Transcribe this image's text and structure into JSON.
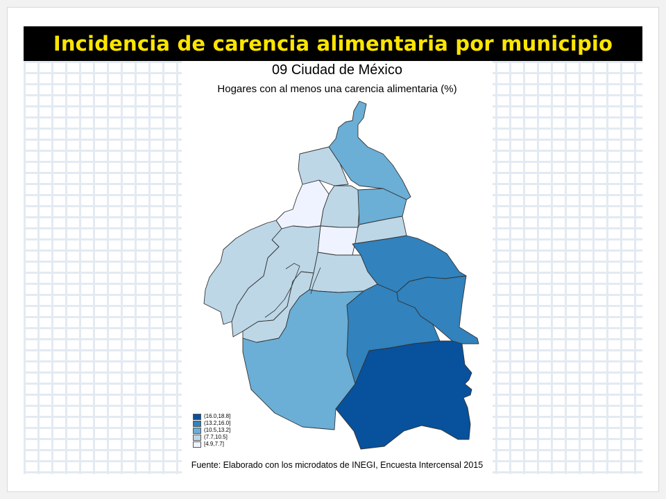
{
  "slide": {
    "title": "Incidencia de carencia alimentaria por municipio"
  },
  "map": {
    "title": "09 Ciudad de México",
    "subtitle": "Hogares con al menos una carencia alimentaria (%)",
    "source": "Fuente: Elaborado con los microdatos de INEGI, Encuesta Intercensal 2015",
    "legend": [
      {
        "label": "(16.0,18.8]",
        "color": "#08519c"
      },
      {
        "label": "(13.2,16.0]",
        "color": "#3182bd"
      },
      {
        "label": "(10.5,13.2]",
        "color": "#6baed6"
      },
      {
        "label": "(7.7,10.5]",
        "color": "#bdd7e7"
      },
      {
        "label": "[4.9,7.7]",
        "color": "#eff3ff"
      }
    ],
    "region_classes": {
      "northern-tip": 2,
      "north-west-a": 3,
      "north-central": 3,
      "north-east": 2,
      "north-west-white": 4,
      "center-east": 3,
      "center-white": 4,
      "east-large": 1,
      "center": 3,
      "west-strip": 3,
      "west-edge": 3,
      "south-central-east": 3,
      "south-east": 1,
      "east-mid": 1,
      "south-large": 2,
      "southeast-dark": 0
    }
  }
}
